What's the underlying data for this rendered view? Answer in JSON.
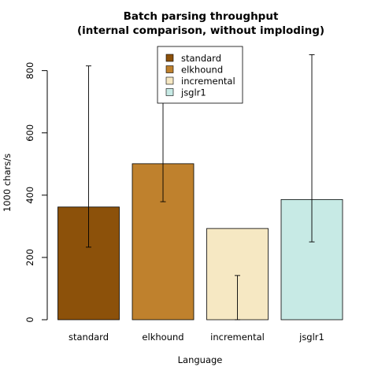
{
  "chart_data": {
    "type": "bar",
    "title_line1": "Batch parsing throughput",
    "title_line2": "(internal comparison, without imploding)",
    "xlabel": "Language",
    "ylabel": "1000 chars/s",
    "categories": [
      "standard",
      "elkhound",
      "incremental",
      "jsglr1"
    ],
    "values": [
      362,
      501,
      293,
      386
    ],
    "error_low": [
      233,
      379,
      0,
      250
    ],
    "error_high": [
      815,
      742,
      142,
      851
    ],
    "colors": [
      "#8c510a",
      "#bf812d",
      "#f6e8c3",
      "#c7eae5"
    ],
    "ylim": [
      0,
      880
    ],
    "yticks": [
      0,
      200,
      400,
      600,
      800
    ],
    "legend": {
      "position": "top-center",
      "entries": [
        "standard",
        "elkhound",
        "incremental",
        "jsglr1"
      ]
    },
    "grid": false
  }
}
